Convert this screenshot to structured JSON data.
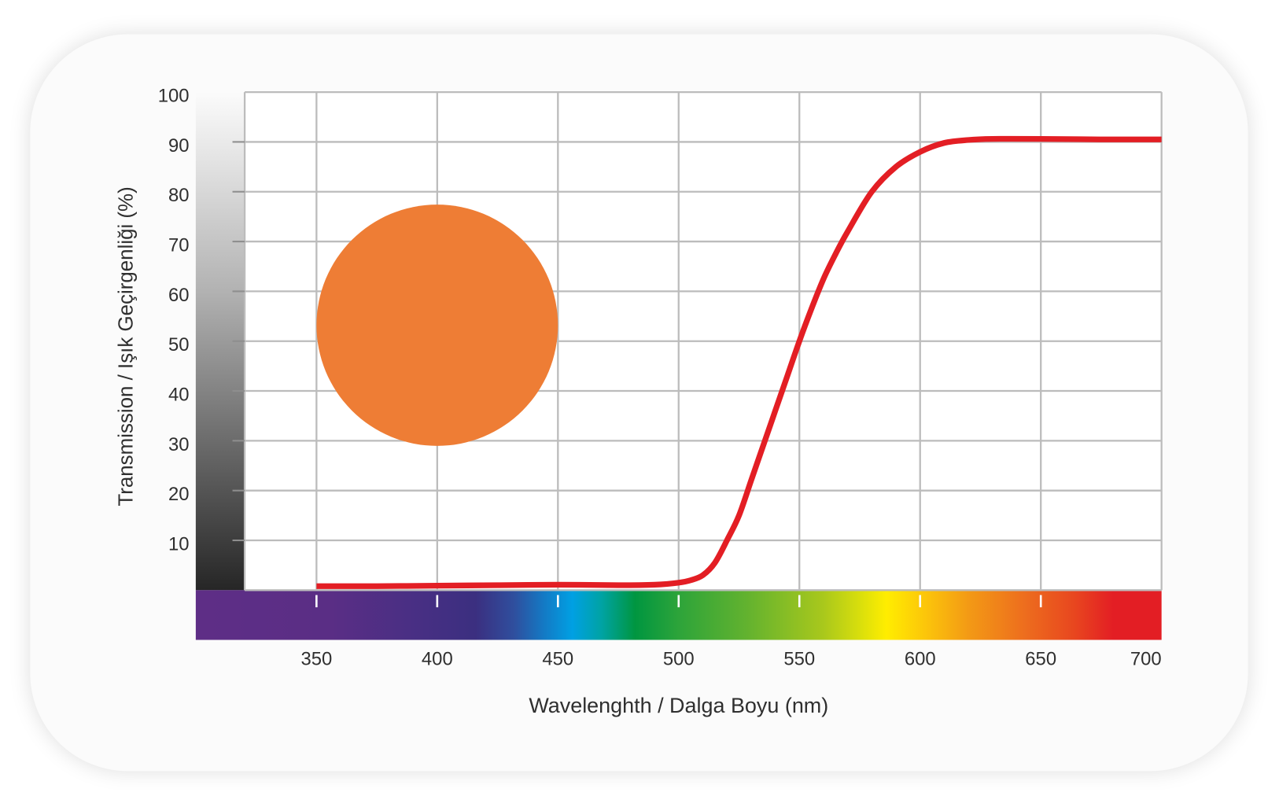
{
  "swatch": {
    "color": "#ee7d35"
  },
  "chart_data": {
    "type": "line",
    "xlabel": "Wavelenghth / Dalga Boyu (nm)",
    "ylabel": "Transmission / Işık Geçirgenliği (%)",
    "xlim": [
      300,
      700
    ],
    "ylim": [
      0,
      100
    ],
    "x_ticks": [
      350,
      400,
      450,
      500,
      550,
      600,
      650,
      700
    ],
    "y_ticks": [
      10,
      20,
      30,
      40,
      50,
      60,
      70,
      80,
      90,
      100
    ],
    "grid": true,
    "series": [
      {
        "color": "#e31e24",
        "x": [
          350,
          375,
          400,
          425,
          450,
          475,
          490,
          500,
          505,
          510,
          515,
          520,
          525,
          530,
          535,
          540,
          545,
          550,
          555,
          560,
          565,
          570,
          580,
          590,
          600,
          610,
          620,
          630,
          650,
          675,
          700
        ],
        "y": [
          0.8,
          0.8,
          0.9,
          1.0,
          1.1,
          1.0,
          1.1,
          1.5,
          2.0,
          3.0,
          5.5,
          10,
          15,
          22,
          29,
          36,
          43,
          50,
          56.5,
          62.5,
          67.5,
          72,
          80,
          85,
          88,
          89.8,
          90.4,
          90.6,
          90.6,
          90.5,
          90.5
        ]
      }
    ]
  }
}
